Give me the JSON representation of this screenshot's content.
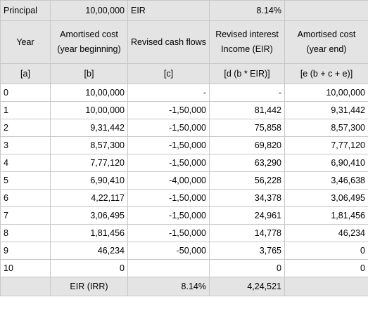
{
  "top": {
    "principal_label": "Principal",
    "principal_value": "10,00,000",
    "eir_label": "EIR",
    "eir_value": "8.14%"
  },
  "headers": [
    "Year",
    "Amortised cost (year beginning)",
    "Revised cash flows",
    "Revised interest Income (EIR)",
    "Amortised cost (year end)"
  ],
  "subheaders": [
    "[a]",
    "[b]",
    "[c]",
    "[d (b * EIR)]",
    "[e (b + c + e)]"
  ],
  "rows": [
    [
      "0",
      "10,00,000",
      "-",
      "-",
      "10,00,000"
    ],
    [
      "1",
      "10,00,000",
      "-1,50,000",
      "81,442",
      "9,31,442"
    ],
    [
      "2",
      "9,31,442",
      "-1,50,000",
      "75,858",
      "8,57,300"
    ],
    [
      "3",
      "8,57,300",
      "-1,50,000",
      "69,820",
      "7,77,120"
    ],
    [
      "4",
      "7,77,120",
      "-1,50,000",
      "63,290",
      "6,90,410"
    ],
    [
      "5",
      "6,90,410",
      "-4,00,000",
      "56,228",
      "3,46,638"
    ],
    [
      "6",
      "4,22,117",
      "-1,50,000",
      "34,378",
      "3,06,495"
    ],
    [
      "7",
      "3,06,495",
      "-1,50,000",
      "24,961",
      "1,81,456"
    ],
    [
      "8",
      "1,81,456",
      "-1,50,000",
      "14,778",
      "46,234"
    ],
    [
      "9",
      "46,234",
      "-50,000",
      "3,765",
      "0"
    ],
    [
      "10",
      "0",
      "",
      "0",
      "0"
    ]
  ],
  "footer": {
    "label": "EIR (IRR)",
    "eir": "8.14%",
    "total_interest": "4,24,521"
  }
}
